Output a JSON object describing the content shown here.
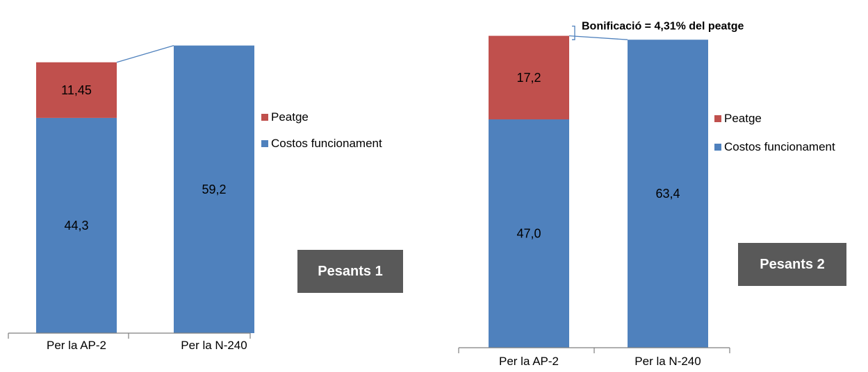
{
  "chart_data": [
    {
      "type": "bar",
      "stacked": true,
      "categories": [
        "Per la AP-2",
        "Per la N-240"
      ],
      "series": [
        {
          "name": "Costos funcionament",
          "color": "#4F81BD",
          "values": [
            44.3,
            59.2
          ],
          "labels": [
            "44,3",
            "59,2"
          ]
        },
        {
          "name": "Peatge",
          "color": "#C0504D",
          "values": [
            11.45,
            0
          ],
          "labels": [
            "11,45",
            ""
          ]
        }
      ],
      "legend": [
        "Peatge",
        "Costos funcionament"
      ],
      "legend_position": "right",
      "panel_label": "Pesants 1",
      "annotation": "",
      "ylim": [
        0,
        65
      ],
      "grid": false
    },
    {
      "type": "bar",
      "stacked": true,
      "categories": [
        "Per la AP-2",
        "Per la N-240"
      ],
      "series": [
        {
          "name": "Costos funcionament",
          "color": "#4F81BD",
          "values": [
            47.0,
            63.4
          ],
          "labels": [
            "47,0",
            "63,4"
          ]
        },
        {
          "name": "Peatge",
          "color": "#C0504D",
          "values": [
            17.2,
            0
          ],
          "labels": [
            "17,2",
            ""
          ]
        }
      ],
      "legend": [
        "Peatge",
        "Costos funcionament"
      ],
      "legend_position": "right",
      "panel_label": "Pesants 2",
      "annotation": "Bonificació = 4,31% del peatge",
      "ylim": [
        0,
        65
      ],
      "grid": false
    }
  ]
}
